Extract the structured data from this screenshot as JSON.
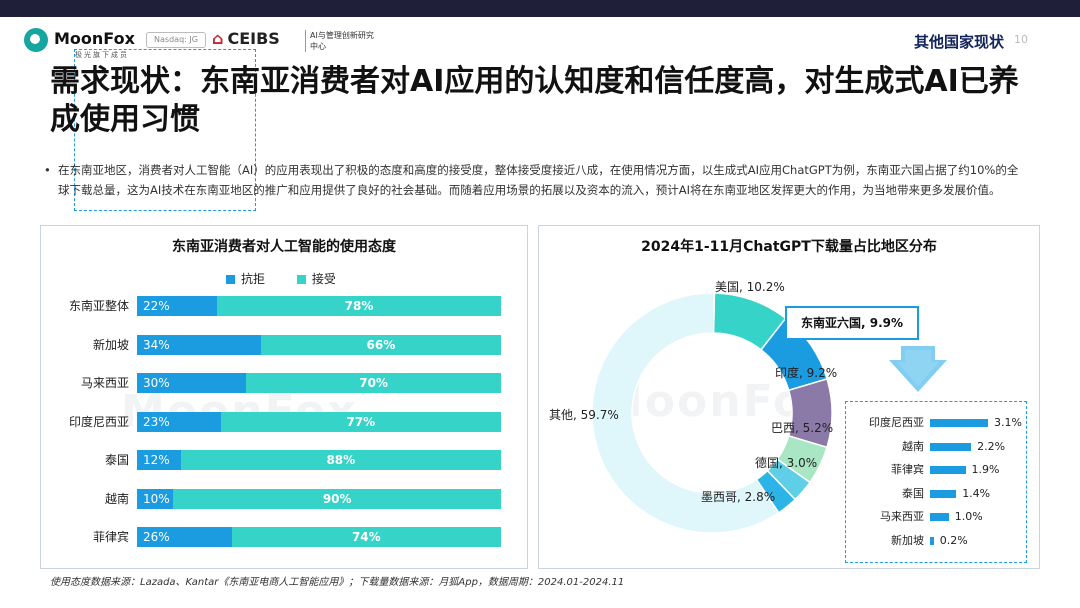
{
  "brand": {
    "logo_name": "MoonFox",
    "logo_sub": "极光旗下成员",
    "nasdaq": "Nasdaq: JG",
    "partner": "CEIBS",
    "partner_sub": "AI与管理创新研究中心"
  },
  "header": {
    "section": "其他国家现状",
    "page": "10"
  },
  "title": "需求现状：东南亚消费者对AI应用的认知度和信任度高，对生成式AI已养成使用习惯",
  "bullet": "在东南亚地区，消费者对人工智能（AI）的应用表现出了积极的态度和高度的接受度，整体接受度接近八成，在使用情况方面，以生成式AI应用ChatGPT为例，东南亚六国占据了约10%的全球下载总量，这为AI技术在东南亚地区的推广和应用提供了良好的社会基础。而随着应用场景的拓展以及资本的流入，预计AI将在东南亚地区发挥更大的作用，为当地带来更多发展价值。",
  "watermark": "MoonFox",
  "chart_data": [
    {
      "type": "bar",
      "title": "东南亚消费者对人工智能的使用态度",
      "categories": [
        "东南亚整体",
        "新加坡",
        "马来西亚",
        "印度尼西亚",
        "泰国",
        "越南",
        "菲律宾"
      ],
      "series": [
        {
          "name": "抗拒",
          "color": "#1b9be0",
          "values": [
            22,
            34,
            30,
            23,
            12,
            10,
            26
          ]
        },
        {
          "name": "接受",
          "color": "#36d3c8",
          "values": [
            78,
            66,
            70,
            77,
            88,
            90,
            74
          ]
        }
      ],
      "stacked": true,
      "orientation": "horizontal",
      "unit": "%"
    },
    {
      "type": "pie",
      "title": "2024年1-11月ChatGPT下载量占比地区分布",
      "slices": [
        {
          "label": "美国",
          "value": 10.2,
          "color": "#36d3c8"
        },
        {
          "label": "东南亚六国",
          "value": 9.9,
          "color": "#1b9be0"
        },
        {
          "label": "印度",
          "value": 9.2,
          "color": "#8b7aa8"
        },
        {
          "label": "巴西",
          "value": 5.2,
          "color": "#a9e6c4"
        },
        {
          "label": "德国",
          "value": 3.0,
          "color": "#5fcfe8"
        },
        {
          "label": "墨西哥",
          "value": 2.8,
          "color": "#2cb4e8"
        },
        {
          "label": "其他",
          "value": 59.7,
          "color": "#dff6fb"
        }
      ],
      "unit": "%",
      "callout": "东南亚六国, 9.9%"
    },
    {
      "type": "bar",
      "orientation": "horizontal",
      "categories": [
        "印度尼西亚",
        "越南",
        "菲律宾",
        "泰国",
        "马来西亚",
        "新加坡"
      ],
      "values": [
        3.1,
        2.2,
        1.9,
        1.4,
        1.0,
        0.2
      ],
      "unit": "%",
      "color": "#1b9be0"
    }
  ],
  "footnote": "使用态度数据来源：Lazada、Kantar《东南亚电商人工智能应用》；下载量数据来源：月狐App，数据周期：2024.01-2024.11"
}
